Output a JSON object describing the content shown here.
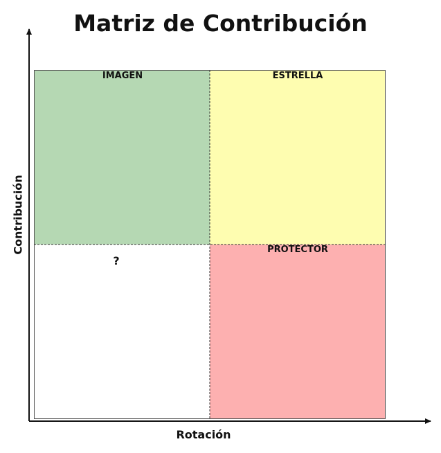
{
  "title": "Matriz de Contribución",
  "x_axis_label": "Rotación",
  "y_axis_label": "Contribución",
  "quadrants": {
    "top_left": {
      "label": "IMAGEN",
      "color": "#b5d8b3"
    },
    "top_right": {
      "label": "ESTRELLA",
      "color": "#fefdb0"
    },
    "bottom_left": {
      "label": "?",
      "color": "#ffffff"
    },
    "bottom_right": {
      "label": "PROTECTOR",
      "color": "#fdb0b0"
    }
  },
  "colors": {
    "axis": "#111111",
    "border": "#555555",
    "divider": "#333333"
  }
}
